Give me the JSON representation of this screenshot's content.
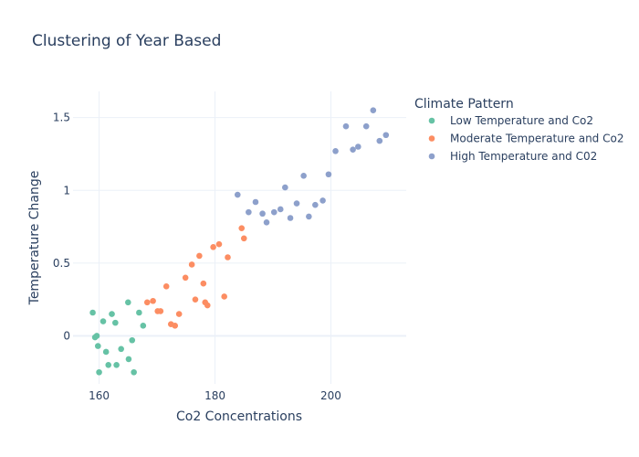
{
  "chart_data": {
    "type": "scatter",
    "title": "Clustering of Year Based",
    "xlabel": "Co2 Concentrations",
    "ylabel": "Temperature Change",
    "xlim": [
      155.5,
      213
    ],
    "ylim": [
      -0.33,
      1.68
    ],
    "x_ticks": [
      160,
      180,
      200
    ],
    "y_ticks": [
      0,
      0.5,
      1,
      1.5
    ],
    "y_tick_labels": [
      "0",
      "0.5",
      "1",
      "1.5"
    ],
    "grid": true,
    "legend": {
      "title": "Climate Pattern",
      "placement": "right"
    },
    "series": [
      {
        "name": "Low Temperature and Co2",
        "color": "#66c2a5",
        "points": [
          [
            158.9,
            0.16
          ],
          [
            159.3,
            -0.01
          ],
          [
            159.6,
            0.0
          ],
          [
            159.8,
            -0.07
          ],
          [
            160.0,
            -0.25
          ],
          [
            160.7,
            0.1
          ],
          [
            161.2,
            -0.11
          ],
          [
            161.6,
            -0.2
          ],
          [
            162.2,
            0.15
          ],
          [
            162.8,
            0.09
          ],
          [
            163.0,
            -0.2
          ],
          [
            163.8,
            -0.09
          ],
          [
            165.0,
            0.23
          ],
          [
            165.1,
            -0.16
          ],
          [
            165.7,
            -0.03
          ],
          [
            166.0,
            -0.25
          ],
          [
            166.9,
            0.16
          ],
          [
            167.6,
            0.07
          ]
        ]
      },
      {
        "name": "Moderate Temperature and Co2",
        "color": "#fc8d62",
        "points": [
          [
            168.3,
            0.23
          ],
          [
            169.3,
            0.24
          ],
          [
            170.1,
            0.17
          ],
          [
            170.6,
            0.17
          ],
          [
            171.6,
            0.34
          ],
          [
            172.4,
            0.08
          ],
          [
            173.1,
            0.07
          ],
          [
            173.8,
            0.15
          ],
          [
            174.9,
            0.4
          ],
          [
            176.0,
            0.49
          ],
          [
            176.6,
            0.25
          ],
          [
            177.3,
            0.55
          ],
          [
            178.0,
            0.36
          ],
          [
            178.3,
            0.23
          ],
          [
            178.7,
            0.21
          ],
          [
            179.7,
            0.61
          ],
          [
            180.7,
            0.63
          ],
          [
            181.6,
            0.27
          ],
          [
            182.2,
            0.54
          ],
          [
            184.6,
            0.74
          ],
          [
            185.0,
            0.67
          ]
        ]
      },
      {
        "name": "High Temperature and C02",
        "color": "#8da0cb",
        "points": [
          [
            183.9,
            0.97
          ],
          [
            185.8,
            0.85
          ],
          [
            187.0,
            0.92
          ],
          [
            188.2,
            0.84
          ],
          [
            188.9,
            0.78
          ],
          [
            190.2,
            0.85
          ],
          [
            191.3,
            0.87
          ],
          [
            192.1,
            1.02
          ],
          [
            193.0,
            0.81
          ],
          [
            194.1,
            0.91
          ],
          [
            195.3,
            1.1
          ],
          [
            196.2,
            0.82
          ],
          [
            197.3,
            0.9
          ],
          [
            198.6,
            0.93
          ],
          [
            199.6,
            1.11
          ],
          [
            200.8,
            1.27
          ],
          [
            202.6,
            1.44
          ],
          [
            203.8,
            1.28
          ],
          [
            204.7,
            1.3
          ],
          [
            206.1,
            1.44
          ],
          [
            207.3,
            1.55
          ],
          [
            208.4,
            1.34
          ],
          [
            209.5,
            1.38
          ]
        ]
      }
    ]
  }
}
